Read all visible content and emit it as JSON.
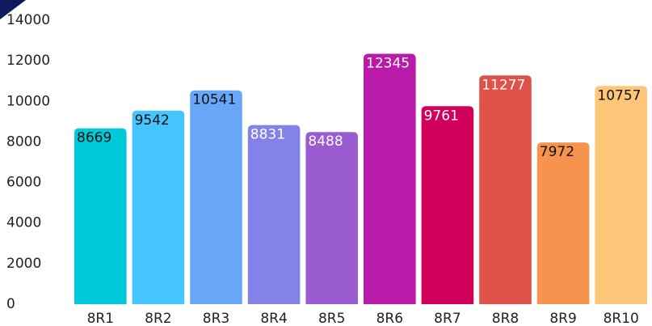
{
  "chart_data": {
    "type": "bar",
    "categories": [
      "8R1",
      "8R2",
      "8R3",
      "8R4",
      "8R5",
      "8R6",
      "8R7",
      "8R8",
      "8R9",
      "8R10"
    ],
    "values": [
      8669,
      9542,
      10541,
      8831,
      8488,
      12345,
      9761,
      11277,
      7972,
      10757
    ],
    "colors": [
      "#00c9d9",
      "#45c5fe",
      "#68a6f8",
      "#8482e6",
      "#9a5cd0",
      "#b91aa7",
      "#d0005b",
      "#e0514a",
      "#f6944f",
      "#fdc679"
    ],
    "label_colors": [
      "#111111",
      "#111111",
      "#111111",
      "#ffffff",
      "#ffffff",
      "#ffffff",
      "#ffffff",
      "#ffffff",
      "#111111",
      "#111111"
    ],
    "ylim": [
      0,
      14000
    ],
    "yticks": [
      0,
      2000,
      4000,
      6000,
      8000,
      10000,
      12000,
      14000
    ],
    "grid": false
  }
}
